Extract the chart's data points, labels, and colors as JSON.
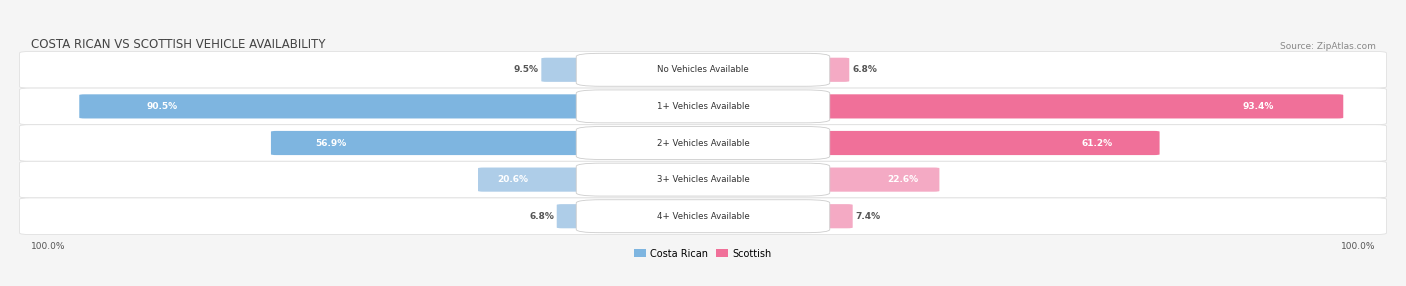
{
  "title": "COSTA RICAN VS SCOTTISH VEHICLE AVAILABILITY",
  "source": "Source: ZipAtlas.com",
  "categories": [
    "No Vehicles Available",
    "1+ Vehicles Available",
    "2+ Vehicles Available",
    "3+ Vehicles Available",
    "4+ Vehicles Available"
  ],
  "costa_rican": [
    9.5,
    90.5,
    56.9,
    20.6,
    6.8
  ],
  "scottish": [
    6.8,
    93.4,
    61.2,
    22.6,
    7.4
  ],
  "blue_color": "#7eb5e0",
  "pink_color": "#f07099",
  "blue_light": "#aecde8",
  "pink_light": "#f4aac4",
  "bg_color": "#f5f5f5",
  "row_bg": "#f0f0f0",
  "row_border": "#e0e0e0",
  "label_color": "#555555",
  "title_color": "#444444",
  "source_color": "#888888",
  "legend_blue": "#7eb5e0",
  "legend_pink": "#f07099",
  "fig_width": 14.06,
  "fig_height": 2.86
}
